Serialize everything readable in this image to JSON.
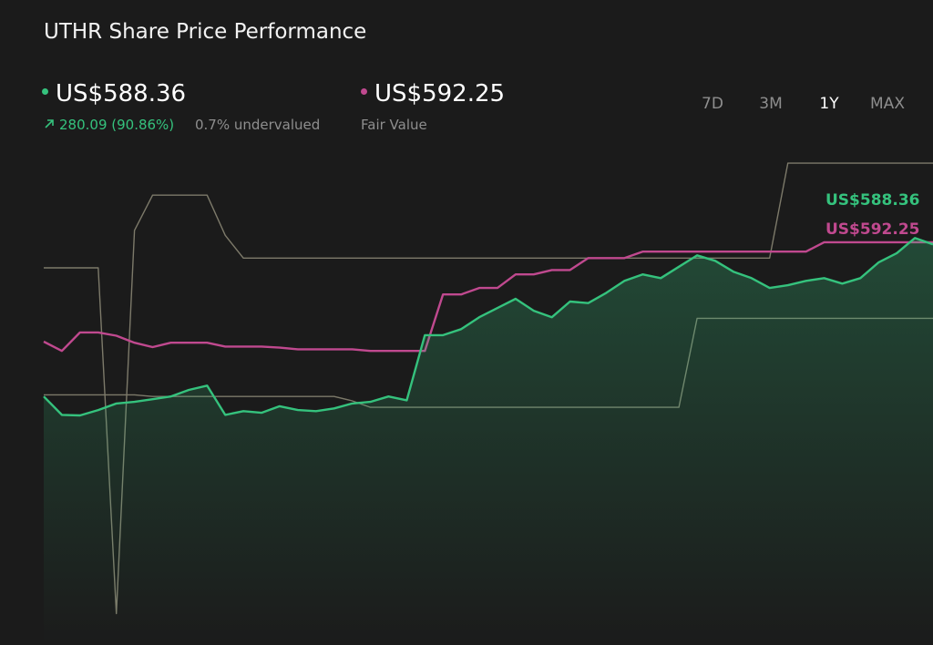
{
  "header": {
    "title": "UTHR Share Price Performance",
    "price": "US$588.36",
    "change": "280.09 (90.86%)",
    "valuation": "0.7% undervalued",
    "fair_value": "US$592.25",
    "fair_value_caption": "Fair Value",
    "ranges": [
      "7D",
      "3M",
      "1Y",
      "MAX"
    ],
    "active_range": "1Y"
  },
  "chart_data": {
    "type": "line",
    "ylim": [
      -150,
      770
    ],
    "series": [
      {
        "color": "#7d7a6a",
        "values": [
          545,
          545,
          545,
          545,
          -92,
          614,
          679,
          679,
          679,
          679,
          605,
          563,
          563,
          563,
          563,
          563,
          563,
          563,
          563,
          563,
          563,
          563,
          563,
          563,
          563,
          563,
          563,
          563,
          563,
          563,
          563,
          563,
          563,
          563,
          563,
          563,
          563,
          563,
          563,
          563,
          563,
          738,
          738,
          738,
          738,
          738,
          738,
          738,
          738,
          738
        ]
      },
      {
        "color": "#7d7a6a",
        "values": [
          311,
          311,
          311,
          311,
          311,
          311,
          308,
          308,
          308,
          308,
          308,
          308,
          308,
          308,
          308,
          308,
          308,
          300,
          288,
          288,
          288,
          288,
          288,
          288,
          288,
          288,
          288,
          288,
          288,
          288,
          288,
          288,
          288,
          288,
          288,
          288,
          452,
          452,
          452,
          452,
          452,
          452,
          452,
          452,
          452,
          452,
          452,
          452,
          452,
          452
        ]
      },
      {
        "color": "#c0498f",
        "values": [
          409,
          392,
          426,
          426,
          420,
          407,
          399,
          407,
          407,
          407,
          400,
          400,
          400,
          398,
          395,
          395,
          395,
          395,
          392,
          392,
          392,
          392,
          496,
          496,
          508,
          508,
          533,
          533,
          541,
          541,
          563,
          563,
          563,
          575,
          575,
          575,
          575,
          575,
          575,
          575,
          575,
          575,
          575,
          592.25,
          592.25,
          592.25,
          592.25,
          592.25,
          592.25,
          592.25
        ]
      },
      {
        "color": "#35c27d",
        "area": true,
        "values": [
          308,
          274,
          273,
          283,
          295,
          298,
          303,
          308,
          320,
          328,
          274,
          281,
          278,
          290,
          283,
          281,
          286,
          295,
          298,
          308,
          301,
          421,
          421,
          432,
          454,
          471,
          488,
          466,
          454,
          483,
          480,
          499,
          521,
          533,
          526,
          547,
          568,
          558,
          538,
          526,
          508,
          513,
          521,
          526,
          516,
          526,
          555,
          572,
          600,
          588.36
        ]
      }
    ]
  }
}
